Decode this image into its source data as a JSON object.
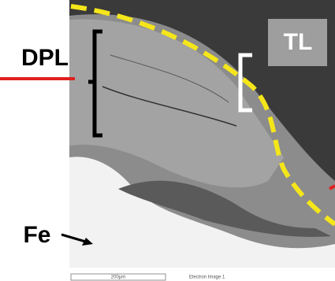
{
  "labels": {
    "dpl": "DPL",
    "tl": "TL",
    "fe": "Fe"
  },
  "caption": {
    "scale": "200µm",
    "image": "Electron Image 1"
  }
}
